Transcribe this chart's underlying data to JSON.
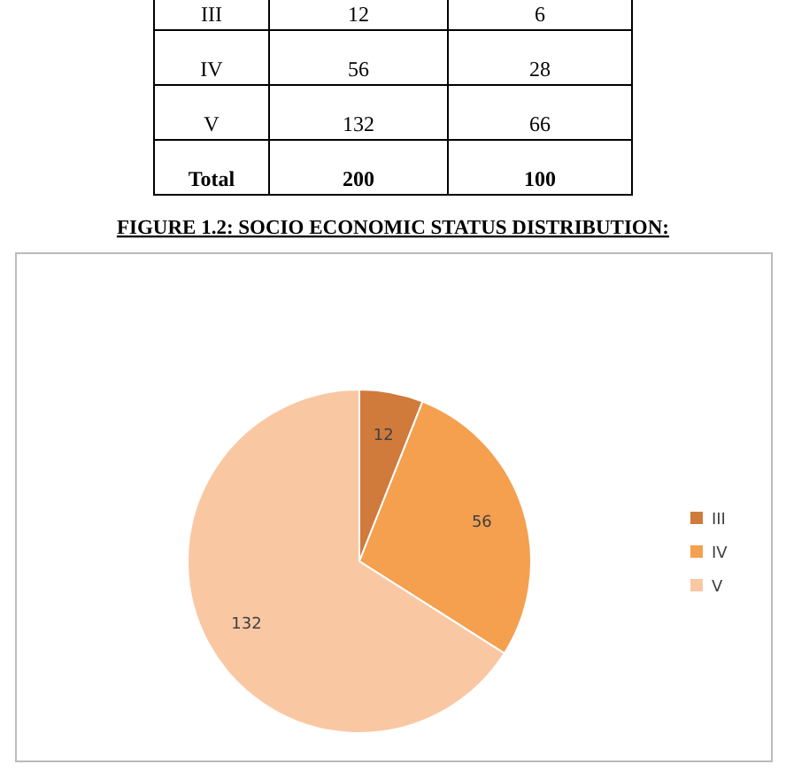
{
  "chart_data": [
    {
      "type": "other",
      "categories": [
        "III",
        "IV",
        "V",
        "Total"
      ],
      "series": [
        {
          "values": [
            12,
            56,
            132,
            200
          ]
        },
        {
          "values": [
            6,
            28,
            66,
            100
          ]
        }
      ],
      "data_labels": true
    },
    {
      "type": "pie",
      "title": "FIGURE 1.2: SOCIO ECONOMIC STATUS DISTRIBUTION:",
      "categories": [
        "III",
        "IV",
        "V"
      ],
      "values": [
        12,
        56,
        132
      ],
      "colors": [
        "#d07a3c",
        "#f4a04f",
        "#f9c8a3"
      ],
      "data_labels": true,
      "legend": "right"
    }
  ]
}
